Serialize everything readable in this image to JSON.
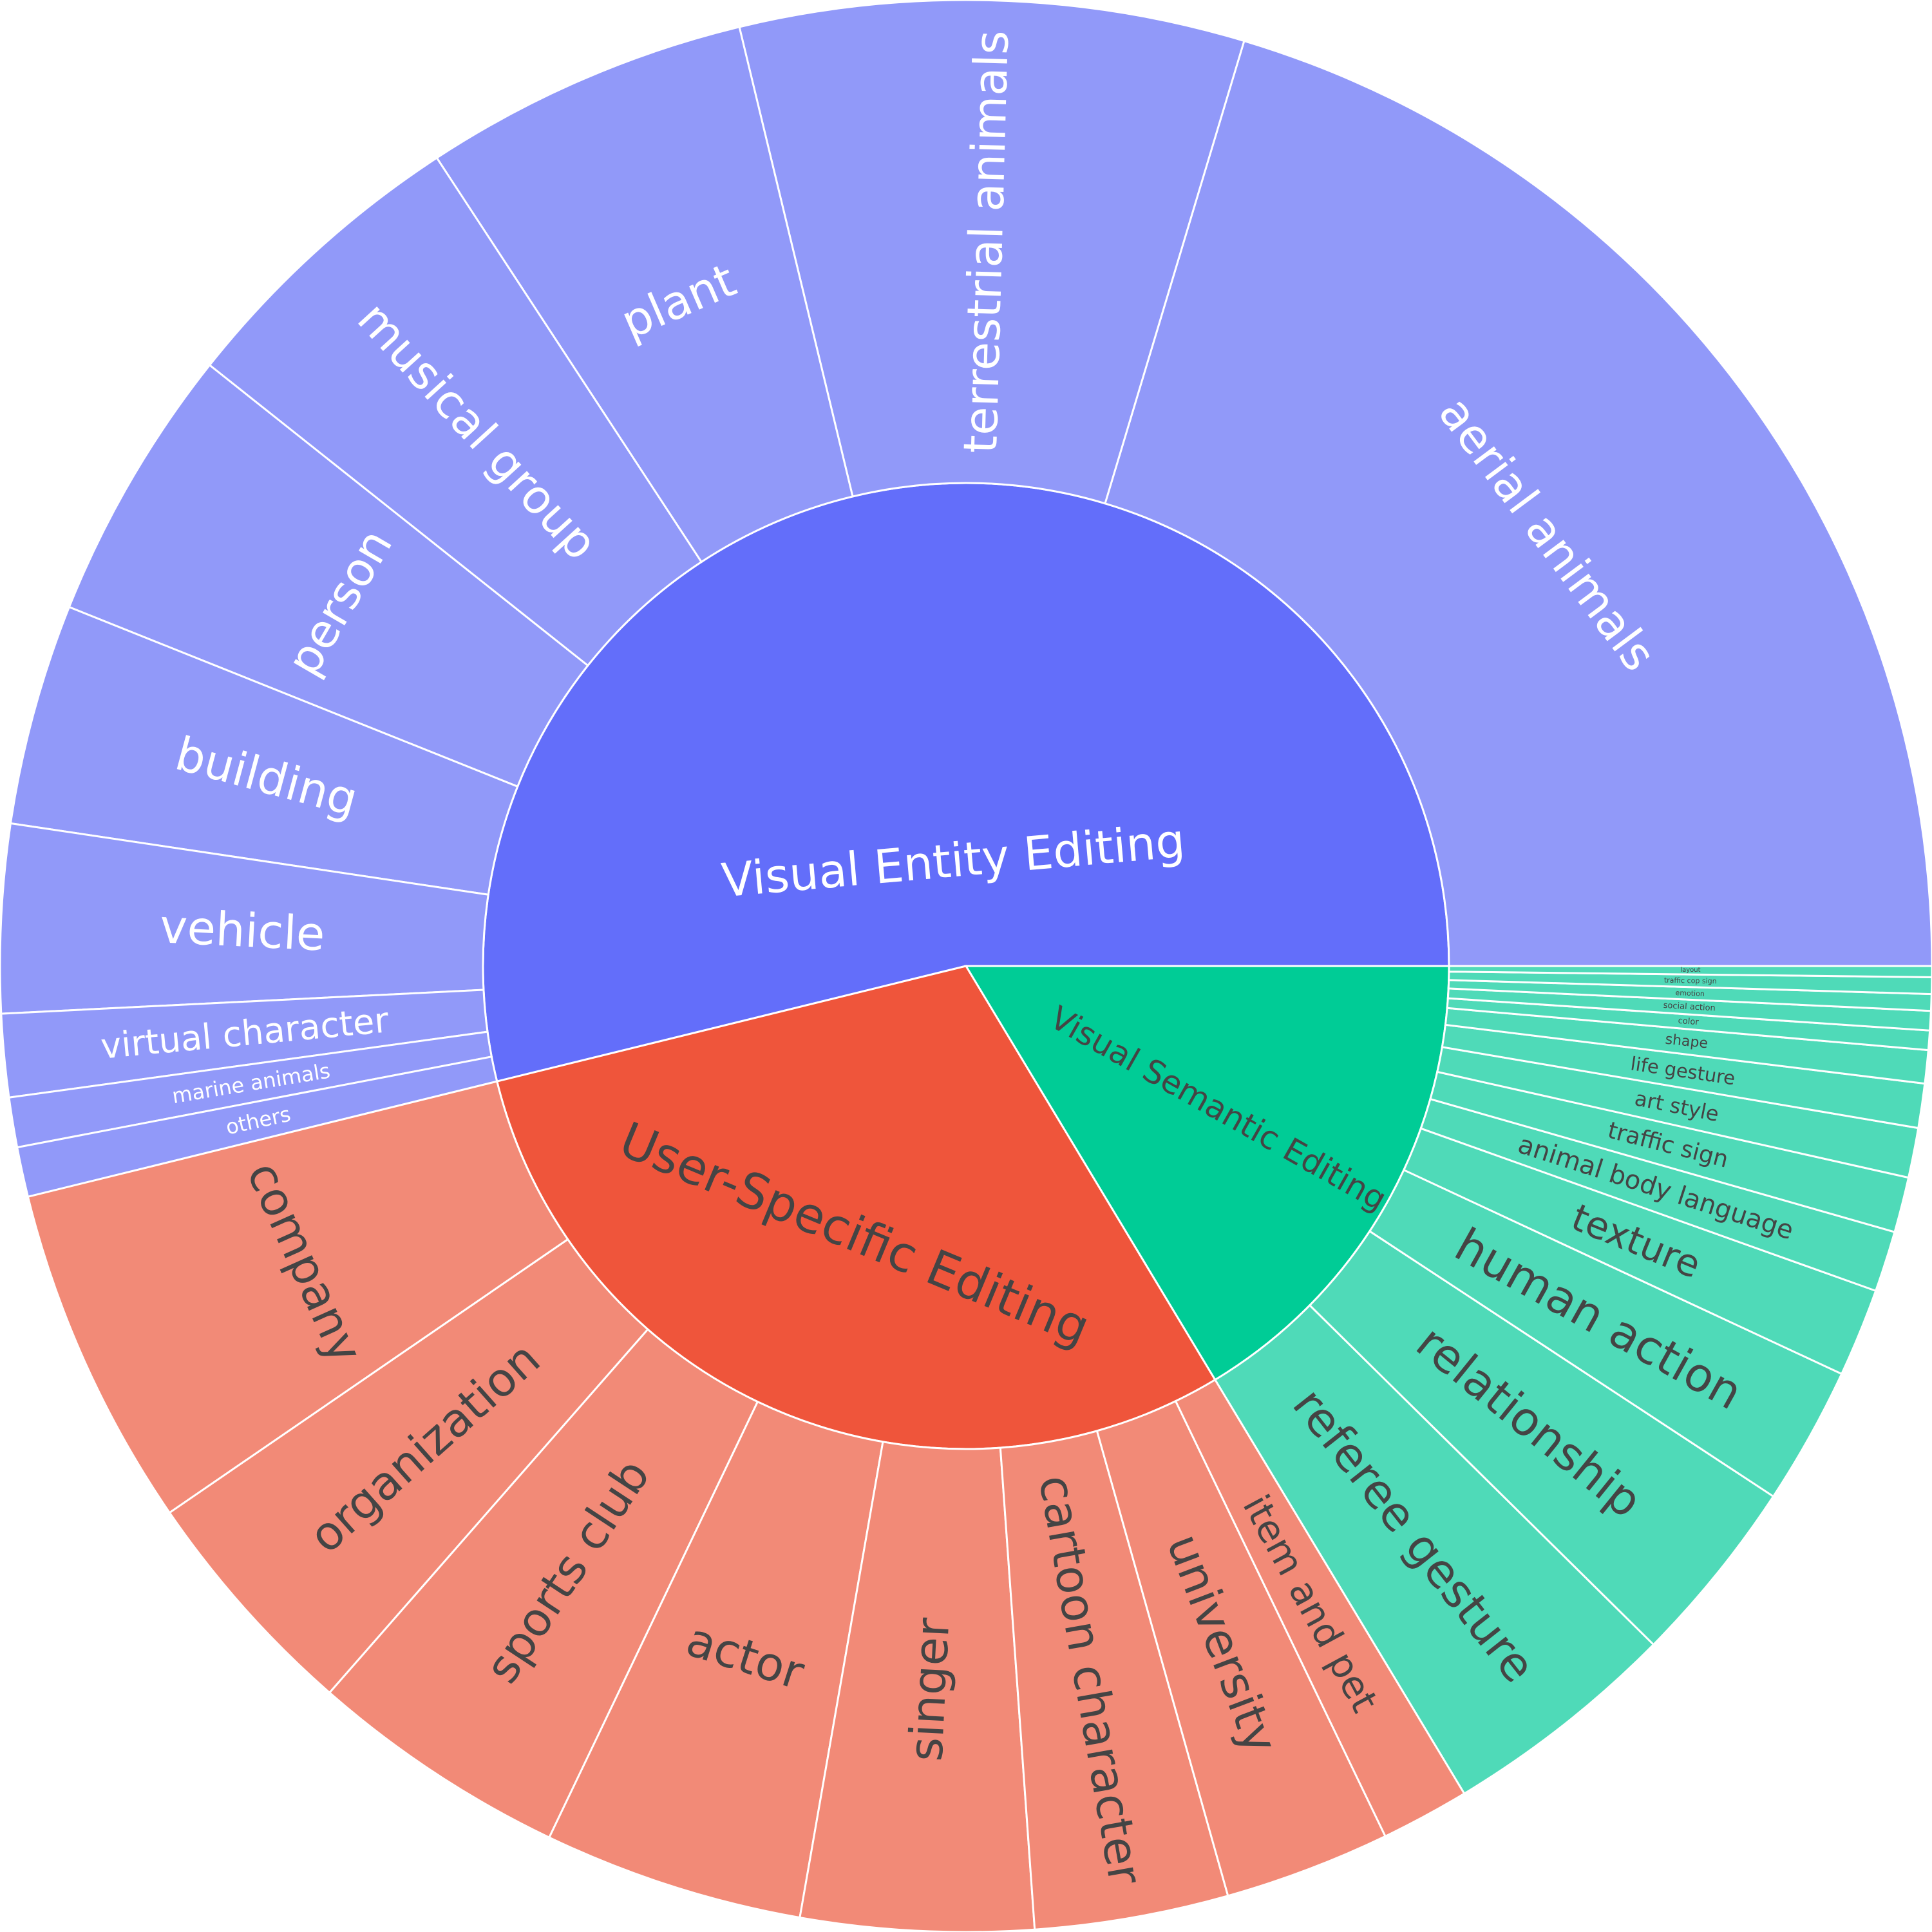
{
  "chart_data": {
    "type": "sunburst",
    "title": "",
    "colors": {
      "Visual Entity Editing": {
        "inner": "#636efa",
        "outer": "#9199f9",
        "text": "#ffffff"
      },
      "User-Specific Editing": {
        "inner": "#ef553b",
        "outer": "#f28a77",
        "text": "#444444"
      },
      "Visual Semantic Editing": {
        "inner": "#00cc96",
        "outer": "#4fdab8",
        "text": "#444444"
      }
    },
    "categories": [
      {
        "name": "Visual Entity Editing",
        "children": [
          {
            "name": "aerial animals",
            "value": 22.0
          },
          {
            "name": "terrestrial animals",
            "value": 9.1
          },
          {
            "name": "plant",
            "value": 5.9
          },
          {
            "name": "musical group",
            "value": 5.5
          },
          {
            "name": "person",
            "value": 5.0
          },
          {
            "name": "building",
            "value": 4.0
          },
          {
            "name": "vehicle",
            "value": 3.4
          },
          {
            "name": "virtual character",
            "value": 1.5
          },
          {
            "name": "marine animals",
            "value": 0.9
          },
          {
            "name": "others",
            "value": 0.9
          }
        ]
      },
      {
        "name": "User-Specific Editing",
        "children": [
          {
            "name": "company",
            "value": 6.2
          },
          {
            "name": "organization",
            "value": 4.3
          },
          {
            "name": "sports club",
            "value": 4.7
          },
          {
            "name": "actor",
            "value": 4.7
          },
          {
            "name": "singer",
            "value": 4.2
          },
          {
            "name": "cartoon character",
            "value": 3.5
          },
          {
            "name": "university",
            "value": 3.0
          },
          {
            "name": "item and pet",
            "value": 1.6
          }
        ]
      },
      {
        "name": "Visual Semantic Editing",
        "children": [
          {
            "name": "referee gesture",
            "value": 4.3
          },
          {
            "name": "relationship",
            "value": 3.4
          },
          {
            "name": "human action",
            "value": 2.5
          },
          {
            "name": "texture",
            "value": 1.6
          },
          {
            "name": "animal body language",
            "value": 1.1
          },
          {
            "name": "traffic sign",
            "value": 1.0
          },
          {
            "name": "art style",
            "value": 0.9
          },
          {
            "name": "life gesture",
            "value": 0.8
          },
          {
            "name": "shape",
            "value": 0.6
          },
          {
            "name": "color",
            "value": 0.35
          },
          {
            "name": "social action",
            "value": 0.35
          },
          {
            "name": "emotion",
            "value": 0.3
          },
          {
            "name": "traffic cop sign",
            "value": 0.3
          },
          {
            "name": "layout",
            "value": 0.2
          }
        ]
      }
    ]
  }
}
